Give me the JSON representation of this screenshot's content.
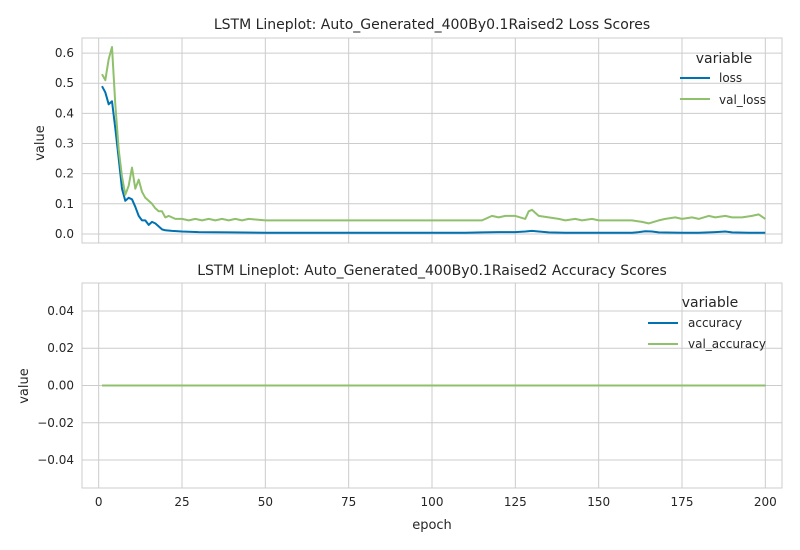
{
  "chart_data": [
    {
      "type": "line",
      "title": "LSTM Lineplot: Auto_Generated_400By0.1Raised2 Loss Scores",
      "xlabel": "",
      "ylabel": "value",
      "xlim": [
        -5,
        205
      ],
      "ylim": [
        -0.03,
        0.65
      ],
      "xticks": [
        0,
        25,
        50,
        75,
        100,
        125,
        150,
        175,
        200
      ],
      "yticks": [
        0.0,
        0.1,
        0.2,
        0.3,
        0.4,
        0.5,
        0.6
      ],
      "ytick_labels": [
        "0.0",
        "0.1",
        "0.2",
        "0.3",
        "0.4",
        "0.5",
        "0.6"
      ],
      "xtick_labels_visible": false,
      "grid": true,
      "legend": {
        "title": "variable",
        "position": "top-right"
      },
      "series": [
        {
          "name": "loss",
          "color": "#0072B2",
          "points": [
            [
              1,
              0.49
            ],
            [
              2,
              0.47
            ],
            [
              3,
              0.43
            ],
            [
              4,
              0.44
            ],
            [
              5,
              0.35
            ],
            [
              6,
              0.25
            ],
            [
              7,
              0.15
            ],
            [
              8,
              0.11
            ],
            [
              9,
              0.12
            ],
            [
              10,
              0.115
            ],
            [
              11,
              0.09
            ],
            [
              12,
              0.06
            ],
            [
              13,
              0.045
            ],
            [
              14,
              0.045
            ],
            [
              15,
              0.03
            ],
            [
              16,
              0.04
            ],
            [
              17,
              0.035
            ],
            [
              18,
              0.025
            ],
            [
              19,
              0.015
            ],
            [
              20,
              0.012
            ],
            [
              22,
              0.01
            ],
            [
              25,
              0.008
            ],
            [
              30,
              0.006
            ],
            [
              40,
              0.005
            ],
            [
              50,
              0.004
            ],
            [
              60,
              0.004
            ],
            [
              70,
              0.004
            ],
            [
              80,
              0.004
            ],
            [
              90,
              0.004
            ],
            [
              100,
              0.004
            ],
            [
              110,
              0.004
            ],
            [
              115,
              0.005
            ],
            [
              120,
              0.006
            ],
            [
              125,
              0.006
            ],
            [
              128,
              0.008
            ],
            [
              130,
              0.01
            ],
            [
              132,
              0.008
            ],
            [
              135,
              0.005
            ],
            [
              140,
              0.004
            ],
            [
              150,
              0.004
            ],
            [
              160,
              0.004
            ],
            [
              162,
              0.006
            ],
            [
              164,
              0.009
            ],
            [
              166,
              0.008
            ],
            [
              168,
              0.005
            ],
            [
              175,
              0.004
            ],
            [
              180,
              0.004
            ],
            [
              185,
              0.006
            ],
            [
              188,
              0.008
            ],
            [
              190,
              0.005
            ],
            [
              195,
              0.004
            ],
            [
              200,
              0.004
            ]
          ]
        },
        {
          "name": "val_loss",
          "color": "#8fc06c",
          "points": [
            [
              1,
              0.53
            ],
            [
              2,
              0.51
            ],
            [
              3,
              0.58
            ],
            [
              4,
              0.62
            ],
            [
              5,
              0.43
            ],
            [
              6,
              0.28
            ],
            [
              7,
              0.19
            ],
            [
              8,
              0.13
            ],
            [
              9,
              0.16
            ],
            [
              10,
              0.22
            ],
            [
              11,
              0.15
            ],
            [
              12,
              0.18
            ],
            [
              13,
              0.14
            ],
            [
              14,
              0.12
            ],
            [
              15,
              0.11
            ],
            [
              16,
              0.1
            ],
            [
              17,
              0.085
            ],
            [
              18,
              0.075
            ],
            [
              19,
              0.075
            ],
            [
              20,
              0.055
            ],
            [
              21,
              0.06
            ],
            [
              22,
              0.055
            ],
            [
              23,
              0.05
            ],
            [
              24,
              0.05
            ],
            [
              25,
              0.05
            ],
            [
              27,
              0.045
            ],
            [
              29,
              0.05
            ],
            [
              31,
              0.045
            ],
            [
              33,
              0.05
            ],
            [
              35,
              0.045
            ],
            [
              37,
              0.05
            ],
            [
              39,
              0.045
            ],
            [
              41,
              0.05
            ],
            [
              43,
              0.045
            ],
            [
              45,
              0.05
            ],
            [
              50,
              0.045
            ],
            [
              55,
              0.045
            ],
            [
              60,
              0.045
            ],
            [
              65,
              0.045
            ],
            [
              70,
              0.045
            ],
            [
              75,
              0.045
            ],
            [
              80,
              0.045
            ],
            [
              85,
              0.045
            ],
            [
              90,
              0.045
            ],
            [
              95,
              0.045
            ],
            [
              100,
              0.045
            ],
            [
              105,
              0.045
            ],
            [
              110,
              0.045
            ],
            [
              115,
              0.045
            ],
            [
              118,
              0.06
            ],
            [
              120,
              0.055
            ],
            [
              122,
              0.06
            ],
            [
              125,
              0.06
            ],
            [
              128,
              0.05
            ],
            [
              129,
              0.075
            ],
            [
              130,
              0.08
            ],
            [
              131,
              0.07
            ],
            [
              132,
              0.06
            ],
            [
              135,
              0.055
            ],
            [
              138,
              0.05
            ],
            [
              140,
              0.045
            ],
            [
              143,
              0.05
            ],
            [
              145,
              0.045
            ],
            [
              148,
              0.05
            ],
            [
              150,
              0.045
            ],
            [
              155,
              0.045
            ],
            [
              160,
              0.045
            ],
            [
              163,
              0.04
            ],
            [
              165,
              0.035
            ],
            [
              168,
              0.045
            ],
            [
              170,
              0.05
            ],
            [
              173,
              0.055
            ],
            [
              175,
              0.05
            ],
            [
              178,
              0.055
            ],
            [
              180,
              0.05
            ],
            [
              183,
              0.06
            ],
            [
              185,
              0.055
            ],
            [
              188,
              0.06
            ],
            [
              190,
              0.055
            ],
            [
              193,
              0.055
            ],
            [
              196,
              0.06
            ],
            [
              198,
              0.065
            ],
            [
              200,
              0.05
            ]
          ]
        }
      ]
    },
    {
      "type": "line",
      "title": "LSTM Lineplot: Auto_Generated_400By0.1Raised2 Accuracy Scores",
      "xlabel": "epoch",
      "ylabel": "value",
      "xlim": [
        -5,
        205
      ],
      "ylim": [
        -0.055,
        0.055
      ],
      "xticks": [
        0,
        25,
        50,
        75,
        100,
        125,
        150,
        175,
        200
      ],
      "yticks": [
        -0.04,
        -0.02,
        0.0,
        0.02,
        0.04
      ],
      "ytick_labels": [
        "−0.04",
        "−0.02",
        "0.00",
        "0.02",
        "0.04"
      ],
      "xtick_labels_visible": true,
      "grid": true,
      "legend": {
        "title": "variable",
        "position": "top-right"
      },
      "series": [
        {
          "name": "accuracy",
          "color": "#0072B2",
          "points": [
            [
              1,
              0.0
            ],
            [
              200,
              0.0
            ]
          ]
        },
        {
          "name": "val_accuracy",
          "color": "#8fc06c",
          "points": [
            [
              1,
              0.0
            ],
            [
              200,
              0.0
            ]
          ]
        }
      ]
    }
  ]
}
